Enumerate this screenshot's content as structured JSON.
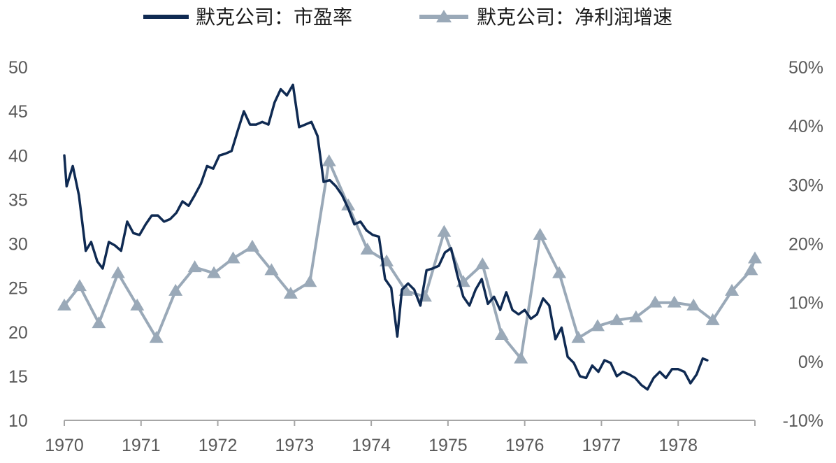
{
  "chart_data": {
    "type": "line",
    "title": "",
    "x_ticks": [
      "1970",
      "1971",
      "1972",
      "1973",
      "1974",
      "1975",
      "1976",
      "1977",
      "1978"
    ],
    "xlim": [
      1970.0,
      1979.0
    ],
    "y_left": {
      "label": "",
      "ylim": [
        10,
        50
      ],
      "ticks": [
        "10",
        "15",
        "20",
        "25",
        "30",
        "35",
        "40",
        "45",
        "50"
      ]
    },
    "y_right": {
      "label": "",
      "ylim": [
        -10,
        50
      ],
      "unit": "%",
      "ticks": [
        "-10%",
        "0%",
        "10%",
        "20%",
        "30%",
        "40%",
        "50%"
      ]
    },
    "grid": false,
    "legend_position": "top",
    "series": [
      {
        "name": "默克公司：市盈率",
        "axis": "left",
        "color": "#0f2a52",
        "marker": "none",
        "points": [
          [
            1970.0,
            40
          ],
          [
            1970.03,
            36.5
          ],
          [
            1970.11,
            38.8
          ],
          [
            1970.19,
            35.5
          ],
          [
            1970.28,
            29.2
          ],
          [
            1970.35,
            30.2
          ],
          [
            1970.43,
            28
          ],
          [
            1970.5,
            27.2
          ],
          [
            1970.58,
            30.2
          ],
          [
            1970.66,
            29.8
          ],
          [
            1970.74,
            29.2
          ],
          [
            1970.82,
            32.5
          ],
          [
            1970.9,
            31.2
          ],
          [
            1970.98,
            31
          ],
          [
            1971.06,
            32.2
          ],
          [
            1971.14,
            33.2
          ],
          [
            1971.22,
            33.2
          ],
          [
            1971.3,
            32.5
          ],
          [
            1971.38,
            32.8
          ],
          [
            1971.46,
            33.5
          ],
          [
            1971.54,
            34.8
          ],
          [
            1971.62,
            34.3
          ],
          [
            1971.7,
            35.5
          ],
          [
            1971.78,
            36.8
          ],
          [
            1971.86,
            38.8
          ],
          [
            1971.94,
            38.5
          ],
          [
            1972.02,
            40
          ],
          [
            1972.1,
            40.2
          ],
          [
            1972.18,
            40.5
          ],
          [
            1972.26,
            42.8
          ],
          [
            1972.34,
            45
          ],
          [
            1972.42,
            43.5
          ],
          [
            1972.5,
            43.5
          ],
          [
            1972.58,
            43.8
          ],
          [
            1972.66,
            43.5
          ],
          [
            1972.74,
            46
          ],
          [
            1972.82,
            47.5
          ],
          [
            1972.9,
            46.8
          ],
          [
            1972.98,
            48
          ],
          [
            1973.06,
            43.2
          ],
          [
            1973.14,
            43.5
          ],
          [
            1973.22,
            43.8
          ],
          [
            1973.3,
            42.2
          ],
          [
            1973.38,
            37
          ],
          [
            1973.46,
            37.2
          ],
          [
            1973.54,
            36.5
          ],
          [
            1973.62,
            35.5
          ],
          [
            1973.7,
            34
          ],
          [
            1973.78,
            32.2
          ],
          [
            1973.86,
            32.5
          ],
          [
            1973.94,
            31.5
          ],
          [
            1974.02,
            31
          ],
          [
            1974.1,
            30.8
          ],
          [
            1974.18,
            26
          ],
          [
            1974.26,
            25
          ],
          [
            1974.34,
            19.5
          ],
          [
            1974.4,
            24.8
          ],
          [
            1974.48,
            25.5
          ],
          [
            1974.56,
            24.8
          ],
          [
            1974.64,
            23
          ],
          [
            1974.72,
            27
          ],
          [
            1974.8,
            27.2
          ],
          [
            1974.88,
            27.5
          ],
          [
            1974.96,
            29
          ],
          [
            1975.04,
            29.5
          ],
          [
            1975.12,
            26.5
          ],
          [
            1975.2,
            24
          ],
          [
            1975.28,
            23
          ],
          [
            1975.36,
            24.8
          ],
          [
            1975.44,
            26
          ],
          [
            1975.52,
            23.2
          ],
          [
            1975.6,
            24
          ],
          [
            1975.68,
            22.5
          ],
          [
            1975.76,
            24.5
          ],
          [
            1975.84,
            22.5
          ],
          [
            1975.92,
            22
          ],
          [
            1976.0,
            22.5
          ],
          [
            1976.08,
            21.5
          ],
          [
            1976.16,
            22
          ],
          [
            1976.24,
            23.8
          ],
          [
            1976.32,
            23
          ],
          [
            1976.4,
            19.2
          ],
          [
            1976.48,
            20.5
          ],
          [
            1976.56,
            17.2
          ],
          [
            1976.64,
            16.5
          ],
          [
            1976.72,
            15
          ],
          [
            1976.8,
            14.8
          ],
          [
            1976.88,
            16.2
          ],
          [
            1976.96,
            15.5
          ],
          [
            1977.04,
            16.8
          ],
          [
            1977.12,
            16.5
          ],
          [
            1977.2,
            15
          ],
          [
            1977.28,
            15.5
          ],
          [
            1977.36,
            15.2
          ],
          [
            1977.44,
            14.8
          ],
          [
            1977.52,
            14
          ],
          [
            1977.6,
            13.5
          ],
          [
            1977.68,
            14.8
          ],
          [
            1977.76,
            15.5
          ],
          [
            1977.84,
            14.8
          ],
          [
            1977.92,
            15.8
          ],
          [
            1978.0,
            15.8
          ],
          [
            1978.08,
            15.5
          ],
          [
            1978.16,
            14.2
          ],
          [
            1978.24,
            15.2
          ],
          [
            1978.32,
            17
          ],
          [
            1978.38,
            16.8
          ]
        ]
      },
      {
        "name": "默克公司：净利润增速",
        "axis": "right",
        "color": "#9aa9b8",
        "marker": "triangle",
        "points": [
          [
            1970.0,
            9.5
          ],
          [
            1970.2,
            12.8
          ],
          [
            1970.45,
            6.5
          ],
          [
            1970.7,
            15
          ],
          [
            1970.95,
            9.5
          ],
          [
            1971.2,
            4
          ],
          [
            1971.45,
            12
          ],
          [
            1971.7,
            16
          ],
          [
            1971.95,
            15
          ],
          [
            1972.2,
            17.5
          ],
          [
            1972.45,
            19.5
          ],
          [
            1972.7,
            15.5
          ],
          [
            1972.95,
            11.5
          ],
          [
            1973.2,
            13.5
          ],
          [
            1973.45,
            34
          ],
          [
            1973.7,
            26.5
          ],
          [
            1973.95,
            19
          ],
          [
            1974.2,
            17
          ],
          [
            1974.45,
            12
          ],
          [
            1974.7,
            11
          ],
          [
            1974.95,
            22
          ],
          [
            1975.2,
            13.5
          ],
          [
            1975.45,
            16.5
          ],
          [
            1975.7,
            4.5
          ],
          [
            1975.95,
            0.5
          ],
          [
            1976.2,
            21.5
          ],
          [
            1976.45,
            15
          ],
          [
            1976.7,
            4
          ],
          [
            1976.95,
            6
          ],
          [
            1977.2,
            7
          ],
          [
            1977.45,
            7.5
          ],
          [
            1977.7,
            10
          ],
          [
            1977.95,
            10
          ],
          [
            1978.2,
            9.5
          ],
          [
            1978.45,
            7
          ],
          [
            1978.7,
            12
          ],
          [
            1978.95,
            15.5
          ],
          [
            1979.0,
            17.5
          ]
        ]
      }
    ]
  }
}
